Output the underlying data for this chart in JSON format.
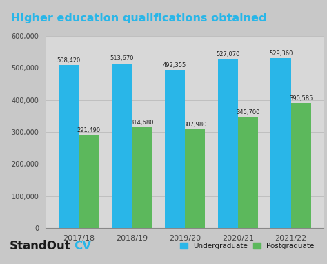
{
  "title": "Higher education qualifications obtained",
  "title_bg_color": "#2c2c2c",
  "title_text_color": "#29b6e8",
  "chart_bg_color": "#d8d8d8",
  "outer_bg_color": "#c8c8c8",
  "categories": [
    "2017/18",
    "2018/19",
    "2019/20",
    "2020/21",
    "2021/22"
  ],
  "undergraduate": [
    508420,
    513670,
    492355,
    527070,
    529360
  ],
  "postgraduate": [
    291490,
    314680,
    307980,
    345700,
    390585
  ],
  "undergrad_color": "#29b6e8",
  "postgrad_color": "#5cb85c",
  "ylim": [
    0,
    600000
  ],
  "yticks": [
    0,
    100000,
    200000,
    300000,
    400000,
    500000,
    600000
  ],
  "ytick_labels": [
    "0",
    "100,000",
    "200,000",
    "300,000",
    "400,000",
    "500,000",
    "600,000"
  ],
  "bar_width": 0.38,
  "legend_labels": [
    "Undergraduate",
    "Postgraduate"
  ],
  "standout_color": "#1a1a1a",
  "cv_color": "#29b6e8",
  "footer_bg_color": "#d8d8d8",
  "grid_color": "#bbbbbb"
}
